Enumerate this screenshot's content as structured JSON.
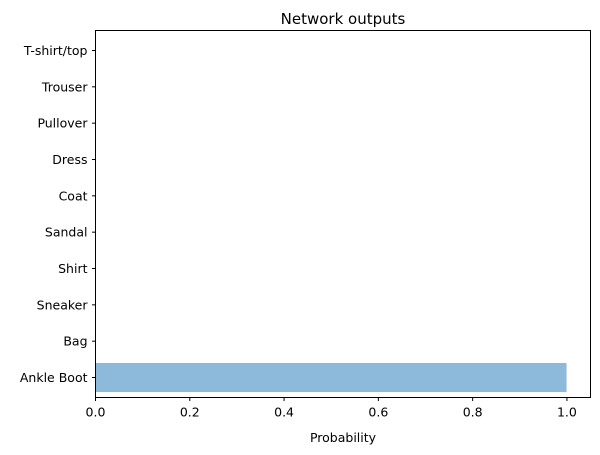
{
  "chart_data": {
    "type": "bar",
    "orientation": "horizontal",
    "title": "Network outputs",
    "xlabel": "Probability",
    "ylabel": "",
    "categories": [
      "T-shirt/top",
      "Trouser",
      "Pullover",
      "Dress",
      "Coat",
      "Sandal",
      "Shirt",
      "Sneaker",
      "Bag",
      "Ankle Boot"
    ],
    "values": [
      0.0,
      0.0,
      0.0,
      0.0,
      0.0,
      0.0,
      0.0,
      0.0,
      0.0,
      0.9992
    ],
    "xlim": [
      0.0,
      1.05
    ],
    "xticks": [
      0.0,
      0.2,
      0.4,
      0.6,
      0.8,
      1.0
    ],
    "xtick_labels": [
      "0.0",
      "0.2",
      "0.4",
      "0.6",
      "0.8",
      "1.0"
    ],
    "grid": false,
    "legend": "none",
    "bar_color": "#8db9da"
  }
}
